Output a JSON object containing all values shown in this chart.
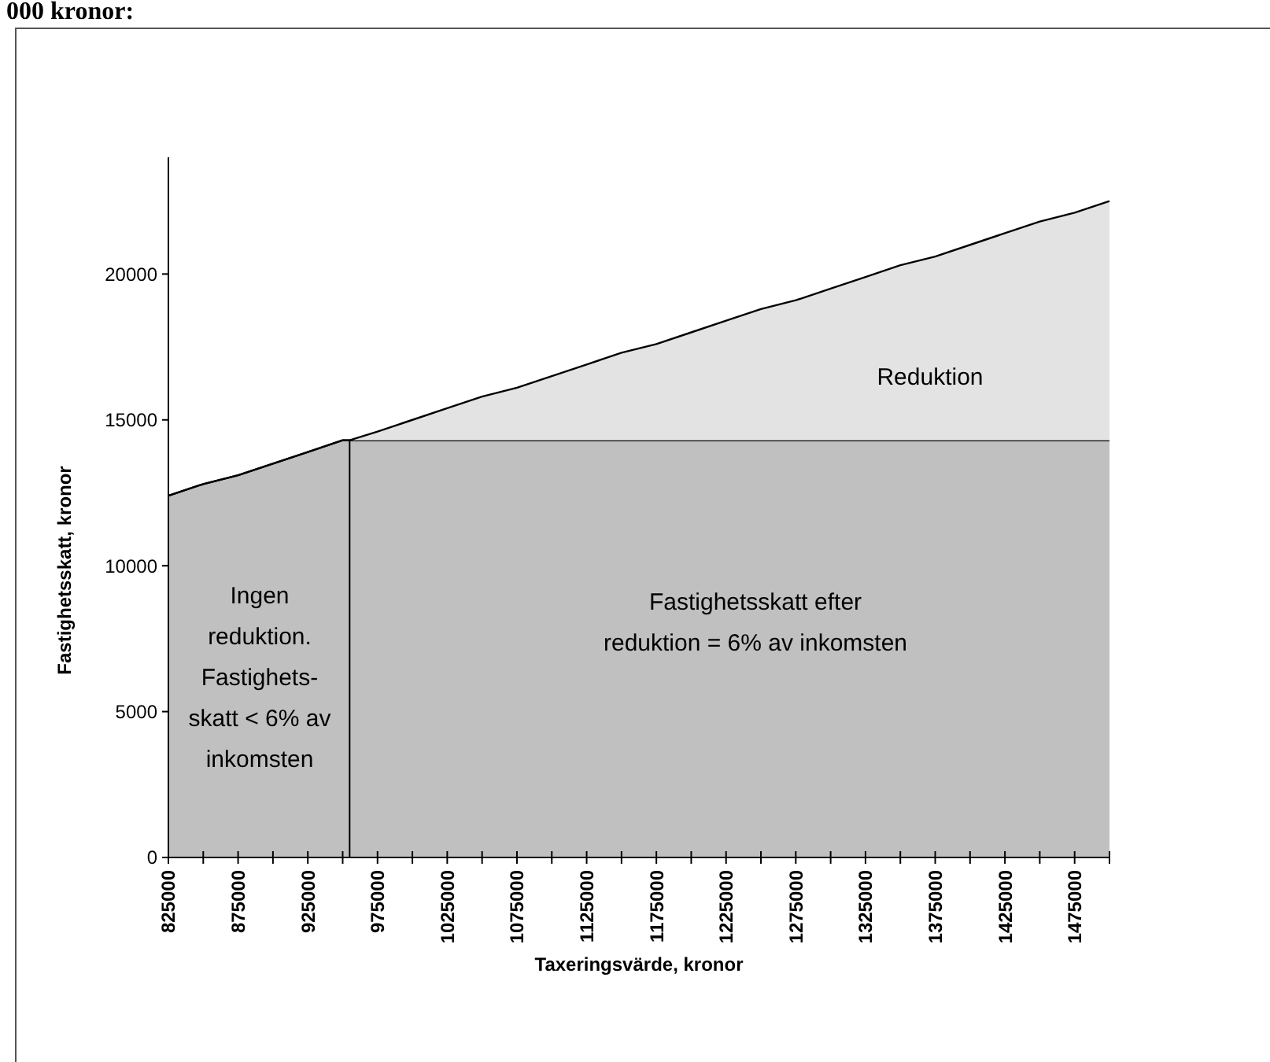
{
  "chart_data": {
    "type": "area",
    "stacked": true,
    "title": "000 kronor:",
    "xlabel": "Taxeringsvärde, kronor",
    "ylabel": "Fastighetsskatt, kronor",
    "x": [
      825000,
      850000,
      875000,
      900000,
      925000,
      950000,
      955000,
      975000,
      1000000,
      1025000,
      1050000,
      1075000,
      1100000,
      1125000,
      1150000,
      1175000,
      1200000,
      1225000,
      1250000,
      1275000,
      1300000,
      1325000,
      1350000,
      1375000,
      1400000,
      1425000,
      1450000,
      1475000,
      1500000
    ],
    "series": [
      {
        "color": "#c0c0c0",
        "values": [
          12400,
          12800,
          13100,
          13500,
          13900,
          14300,
          14300,
          14300,
          14300,
          14300,
          14300,
          14300,
          14300,
          14300,
          14300,
          14300,
          14300,
          14300,
          14300,
          14300,
          14300,
          14300,
          14300,
          14300,
          14300,
          14300,
          14300,
          14300,
          14300
        ]
      },
      {
        "color": "#e3e3e3",
        "values": [
          0,
          0,
          0,
          0,
          0,
          0,
          0,
          300,
          700,
          1100,
          1500,
          1800,
          2200,
          2600,
          3000,
          3300,
          3700,
          4100,
          4500,
          4800,
          5200,
          5600,
          6000,
          6300,
          6700,
          7100,
          7500,
          7800,
          8200
        ]
      }
    ],
    "xlim": [
      825000,
      1500000
    ],
    "xticks": [
      825000,
      {
        "value": 850000,
        "label": null
      },
      875000,
      {
        "value": 900000,
        "label": null
      },
      925000,
      {
        "value": 950000,
        "label": null
      },
      975000,
      {
        "value": 1000000,
        "label": null
      },
      1025000,
      {
        "value": 1050000,
        "label": null
      },
      1075000,
      {
        "value": 1100000,
        "label": null
      },
      1125000,
      {
        "value": 1150000,
        "label": null
      },
      1175000,
      {
        "value": 1200000,
        "label": null
      },
      1225000,
      {
        "value": 1250000,
        "label": null
      },
      1275000,
      {
        "value": 1300000,
        "label": null
      },
      1325000,
      {
        "value": 1350000,
        "label": null
      },
      1375000,
      {
        "value": 1400000,
        "label": null
      },
      1425000,
      {
        "value": 1450000,
        "label": null
      },
      1475000,
      {
        "value": 1500000,
        "label": null
      }
    ],
    "ylim": [
      0,
      24000
    ],
    "yticks": [
      0,
      5000,
      10000,
      15000,
      20000
    ],
    "ref_lines": [
      {
        "axis": "x",
        "value": 955000,
        "color": "#000000"
      }
    ],
    "annotations": [
      "Reduktion",
      "Fastighetsskatt efter\nreduktion = 6% av inkomsten",
      "Ingen\nreduktion.\nFastighets-\nskatt < 6% av\ninkomsten"
    ],
    "grid": false
  }
}
